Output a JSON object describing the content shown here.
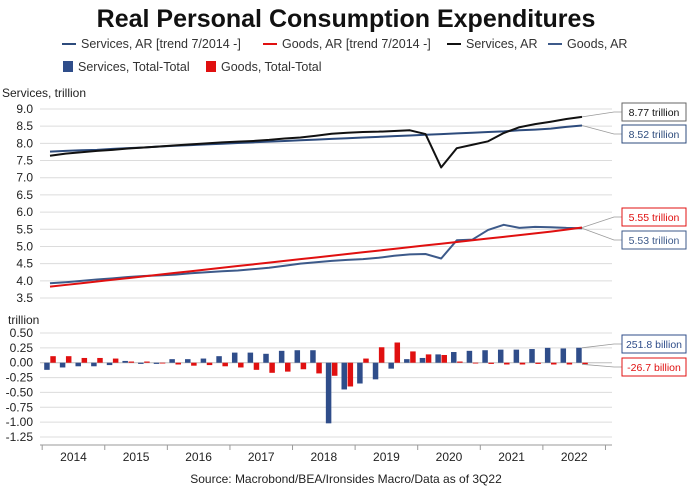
{
  "title": "Real Personal Consumption Expenditures",
  "source": "Source: Macrobond/BEA/Ironsides Macro/Data as of 3Q22",
  "colors": {
    "services_trend": "#2d4b7c",
    "goods_trend": "#e01010",
    "services": "#111111",
    "goods": "#3d5a8a",
    "services_bar": "#2f4d8a",
    "goods_bar": "#e01010"
  },
  "legend": [
    {
      "label": "Services, AR [trend 7/2014 -]",
      "type": "line",
      "color": "#2d4b7c"
    },
    {
      "label": "Goods, AR [trend 7/2014 -]",
      "type": "line",
      "color": "#e01010"
    },
    {
      "label": "Services, AR",
      "type": "line",
      "color": "#111111"
    },
    {
      "label": "Goods, AR",
      "type": "line",
      "color": "#3d5a8a"
    },
    {
      "label": "Services, Total-Total",
      "type": "bar",
      "color": "#2f4d8a"
    },
    {
      "label": "Goods, Total-Total",
      "type": "bar",
      "color": "#e01010"
    }
  ],
  "chart_data": [
    {
      "type": "line",
      "ylabel": "Services, trillion",
      "ylim": [
        3.5,
        9.0
      ],
      "yticks": [
        "3.5",
        "4.0",
        "4.5",
        "5.0",
        "5.5",
        "6.0",
        "6.5",
        "7.0",
        "7.5",
        "8.0",
        "8.5",
        "9.0"
      ],
      "x": [
        "2014Q1",
        "2014Q2",
        "2014Q3",
        "2014Q4",
        "2015Q1",
        "2015Q2",
        "2015Q3",
        "2015Q4",
        "2016Q1",
        "2016Q2",
        "2016Q3",
        "2016Q4",
        "2017Q1",
        "2017Q2",
        "2017Q3",
        "2017Q4",
        "2018Q1",
        "2018Q2",
        "2018Q3",
        "2018Q4",
        "2019Q1",
        "2019Q2",
        "2019Q3",
        "2019Q4",
        "2020Q1",
        "2020Q2",
        "2020Q3",
        "2020Q4",
        "2021Q1",
        "2021Q2",
        "2021Q3",
        "2021Q4",
        "2022Q1",
        "2022Q2",
        "2022Q3"
      ],
      "series": [
        {
          "name": "Services, AR",
          "values": [
            7.64,
            7.7,
            7.74,
            7.78,
            7.81,
            7.85,
            7.88,
            7.91,
            7.94,
            7.97,
            8.0,
            8.03,
            8.05,
            8.07,
            8.1,
            8.14,
            8.17,
            8.22,
            8.28,
            8.31,
            8.33,
            8.34,
            8.36,
            8.38,
            8.27,
            7.3,
            7.86,
            7.96,
            8.06,
            8.3,
            8.47,
            8.56,
            8.63,
            8.71,
            8.77
          ]
        },
        {
          "name": "Goods, AR",
          "values": [
            3.93,
            3.96,
            4.0,
            4.04,
            4.07,
            4.11,
            4.14,
            4.16,
            4.18,
            4.22,
            4.25,
            4.28,
            4.3,
            4.34,
            4.38,
            4.44,
            4.5,
            4.54,
            4.58,
            4.61,
            4.63,
            4.67,
            4.73,
            4.77,
            4.78,
            4.65,
            5.18,
            5.2,
            5.48,
            5.63,
            5.54,
            5.57,
            5.56,
            5.54,
            5.53
          ]
        },
        {
          "name": "Services, AR [trend 7/2014 -]",
          "values": [
            7.76,
            7.78,
            7.8,
            7.81,
            7.84,
            7.86,
            7.88,
            7.91,
            7.93,
            7.95,
            7.97,
            7.99,
            8.01,
            8.03,
            8.05,
            8.07,
            8.09,
            8.11,
            8.13,
            8.15,
            8.17,
            8.19,
            8.21,
            8.23,
            8.25,
            8.27,
            8.29,
            8.31,
            8.33,
            8.35,
            8.38,
            8.4,
            8.43,
            8.48,
            8.52
          ]
        },
        {
          "name": "Goods, AR [trend 7/2014 -]",
          "values": [
            3.83,
            3.88,
            3.93,
            3.98,
            4.03,
            4.08,
            4.13,
            4.18,
            4.23,
            4.28,
            4.33,
            4.38,
            4.43,
            4.48,
            4.53,
            4.58,
            4.63,
            4.68,
            4.73,
            4.78,
            4.83,
            4.88,
            4.93,
            4.98,
            5.03,
            5.08,
            5.13,
            5.18,
            5.23,
            5.28,
            5.33,
            5.38,
            5.43,
            5.49,
            5.55
          ]
        }
      ],
      "callouts": [
        {
          "label": "8.77 trillion",
          "series": "Services, AR"
        },
        {
          "label": "8.52 trillion",
          "series": "Services, AR [trend 7/2014 -]"
        },
        {
          "label": "5.55 trillion",
          "series": "Goods, AR [trend 7/2014 -]"
        },
        {
          "label": "5.53 trillion",
          "series": "Goods, AR"
        }
      ]
    },
    {
      "type": "bar",
      "ylabel": "trillion",
      "ylim": [
        -1.25,
        0.5
      ],
      "yticks": [
        "0.50",
        "0.25",
        "0.00",
        "-0.25",
        "-0.50",
        "-0.75",
        "-1.00",
        "-1.25"
      ],
      "x": [
        "2014Q1",
        "2014Q2",
        "2014Q3",
        "2014Q4",
        "2015Q1",
        "2015Q2",
        "2015Q3",
        "2015Q4",
        "2016Q1",
        "2016Q2",
        "2016Q3",
        "2016Q4",
        "2017Q1",
        "2017Q2",
        "2017Q3",
        "2017Q4",
        "2018Q1",
        "2018Q2",
        "2018Q3",
        "2018Q4",
        "2019Q1",
        "2019Q2",
        "2019Q3",
        "2019Q4",
        "2020Q1",
        "2020Q2",
        "2020Q3",
        "2020Q4",
        "2021Q1",
        "2021Q2",
        "2021Q3",
        "2021Q4",
        "2022Q1",
        "2022Q2",
        "2022Q3"
      ],
      "series": [
        {
          "name": "Services, Total-Total",
          "values": [
            -0.12,
            -0.08,
            -0.06,
            -0.06,
            -0.04,
            0.03,
            -0.02,
            -0.02,
            0.06,
            0.06,
            0.07,
            0.11,
            0.17,
            0.17,
            0.15,
            0.2,
            0.21,
            0.21,
            -1.02,
            -0.45,
            -0.35,
            -0.28,
            -0.1,
            0.06,
            0.08,
            0.14,
            0.18,
            0.2,
            0.21,
            0.22,
            0.22,
            0.23,
            0.25,
            0.24,
            0.2518
          ]
        },
        {
          "name": "Goods, Total-Total",
          "values": [
            0.11,
            0.11,
            0.08,
            0.08,
            0.07,
            0.02,
            0.02,
            -0.01,
            -0.03,
            -0.05,
            -0.04,
            -0.06,
            -0.08,
            -0.12,
            -0.17,
            -0.15,
            -0.11,
            -0.18,
            -0.22,
            -0.4,
            0.07,
            0.26,
            0.34,
            0.19,
            0.14,
            0.13,
            0.02,
            -0.01,
            -0.02,
            -0.03,
            -0.03,
            -0.02,
            -0.03,
            -0.03,
            -0.0267
          ]
        }
      ],
      "callouts": [
        {
          "label": "251.8 billion",
          "series": "Services, Total-Total"
        },
        {
          "label": "-26.7 billion",
          "series": "Goods, Total-Total"
        }
      ]
    }
  ],
  "x_axis": {
    "year_labels": [
      "2014",
      "2015",
      "2016",
      "2017",
      "2018",
      "2019",
      "2020",
      "2021",
      "2022"
    ]
  }
}
